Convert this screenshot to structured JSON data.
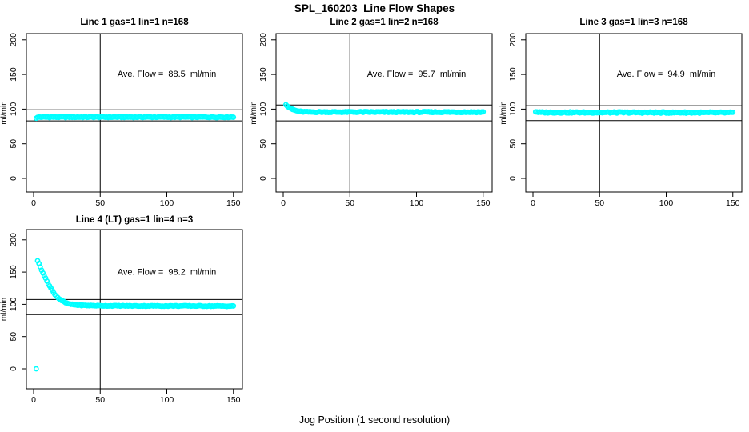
{
  "page": {
    "title": "SPL_160203  Line Flow Shapes",
    "xlabel": "Jog Position (1 second resolution)"
  },
  "style": {
    "point_color": "#00ffff",
    "axis_color": "#000000",
    "background": "#ffffff"
  },
  "chart_data": [
    {
      "id": "line1",
      "type": "scatter",
      "row": 0,
      "col": 0,
      "title": "Line 1 gas=1 lin=1 n=168",
      "annotation": "Ave. Flow =  88.5  ml/min",
      "ave_flow_ml_min": 88.5,
      "n": 168,
      "ylabel": "ml/min",
      "x_ticks": [
        0,
        50,
        100,
        150
      ],
      "y_ticks": [
        0,
        50,
        100,
        150,
        200
      ],
      "xlim": [
        -6,
        156
      ],
      "ylim": [
        -10,
        228
      ],
      "vline_x": 50,
      "hline_upper": 99,
      "hline_lower": 83,
      "series": {
        "x_start": 2,
        "x_end": 150,
        "points": 149,
        "jitter": 0.7,
        "keypoints": [
          [
            2,
            87.3
          ],
          [
            4,
            88.5
          ],
          [
            150,
            88.5
          ]
        ]
      },
      "outliers": []
    },
    {
      "id": "line2",
      "type": "scatter",
      "row": 0,
      "col": 1,
      "title": "Line 2 gas=1 lin=2 n=168",
      "annotation": "Ave. Flow =  95.7  ml/min",
      "ave_flow_ml_min": 95.7,
      "n": 168,
      "ylabel": "ml/min",
      "x_ticks": [
        0,
        50,
        100,
        150
      ],
      "y_ticks": [
        0,
        50,
        100,
        150,
        200
      ],
      "xlim": [
        -6,
        156
      ],
      "ylim": [
        -10,
        228
      ],
      "vline_x": 50,
      "hline_upper": 106,
      "hline_lower": 83,
      "series": {
        "x_start": 2,
        "x_end": 150,
        "points": 149,
        "jitter": 0.7,
        "keypoints": [
          [
            2,
            107
          ],
          [
            4,
            103
          ],
          [
            7,
            99.5
          ],
          [
            10,
            97.5
          ],
          [
            14,
            96.3
          ],
          [
            20,
            95.8
          ],
          [
            150,
            95.7
          ]
        ]
      },
      "outliers": []
    },
    {
      "id": "line3",
      "type": "scatter",
      "row": 0,
      "col": 2,
      "title": "Line 3 gas=1 lin=3 n=168",
      "annotation": "Ave. Flow =  94.9  ml/min",
      "ave_flow_ml_min": 94.9,
      "n": 168,
      "ylabel": "ml/min",
      "x_ticks": [
        0,
        50,
        100,
        150
      ],
      "y_ticks": [
        0,
        50,
        100,
        150,
        200
      ],
      "xlim": [
        -6,
        156
      ],
      "ylim": [
        -10,
        228
      ],
      "vline_x": 50,
      "hline_upper": 105,
      "hline_lower": 83.5,
      "series": {
        "x_start": 2,
        "x_end": 150,
        "points": 149,
        "jitter": 0.9,
        "keypoints": [
          [
            2,
            96.5
          ],
          [
            5,
            95.2
          ],
          [
            150,
            94.9
          ]
        ]
      },
      "outliers": []
    },
    {
      "id": "line4",
      "type": "scatter",
      "row": 1,
      "col": 0,
      "title": "Line 4 (LT) gas=1 lin=4 n=3",
      "annotation": "Ave. Flow =  98.2  ml/min",
      "ave_flow_ml_min": 98.2,
      "n": 3,
      "ylabel": "ml/min",
      "x_ticks": [
        0,
        50,
        100,
        150
      ],
      "y_ticks": [
        0,
        50,
        100,
        150,
        200
      ],
      "xlim": [
        -6,
        156
      ],
      "ylim": [
        -10,
        228
      ],
      "vline_x": 50,
      "hline_upper": 107.5,
      "hline_lower": 84,
      "series": {
        "x_start": 3,
        "x_end": 150,
        "points": 148,
        "jitter": 0.6,
        "keypoints": [
          [
            3,
            168
          ],
          [
            5,
            158
          ],
          [
            7,
            149
          ],
          [
            9,
            140
          ],
          [
            11,
            132
          ],
          [
            13,
            125
          ],
          [
            15,
            118
          ],
          [
            17,
            113
          ],
          [
            19,
            109
          ],
          [
            21,
            106
          ],
          [
            23,
            103.5
          ],
          [
            25,
            101.5
          ],
          [
            28,
            100
          ],
          [
            32,
            99
          ],
          [
            38,
            98.3
          ],
          [
            50,
            97.8
          ],
          [
            80,
            97.5
          ],
          [
            120,
            97.5
          ],
          [
            150,
            97.2
          ]
        ]
      },
      "outliers": [
        [
          2,
          0
        ]
      ]
    }
  ]
}
